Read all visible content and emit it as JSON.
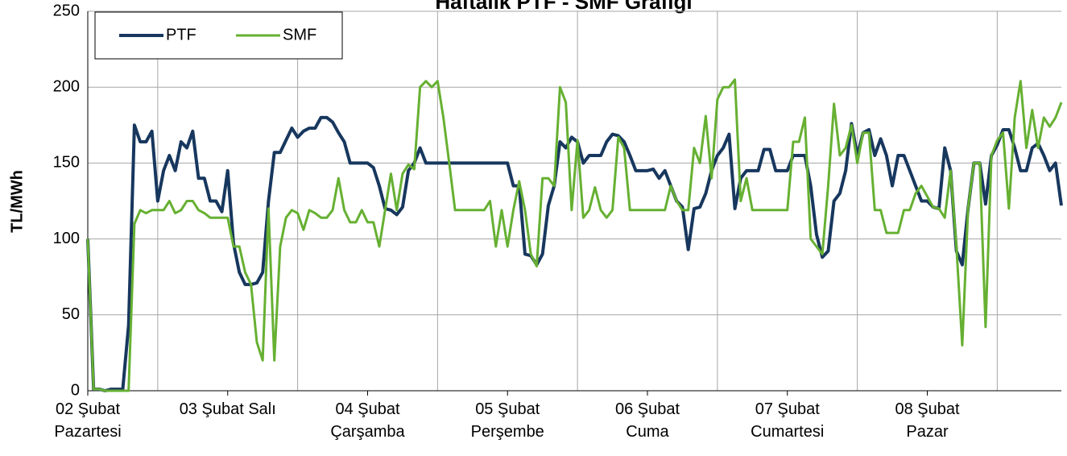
{
  "chart_data": {
    "type": "line",
    "title": "Haftalık PTF - SMF Grafiği",
    "y_label": "TL/MWh",
    "categories": [
      "02 Şubat\nPazartesi",
      null,
      null,
      null,
      null,
      null,
      null,
      null,
      null,
      null,
      null,
      null,
      null,
      null,
      null,
      null,
      null,
      null,
      null,
      null,
      null,
      null,
      null,
      null,
      "03 Şubat Salı",
      null,
      null,
      null,
      null,
      null,
      null,
      null,
      null,
      null,
      null,
      null,
      null,
      null,
      null,
      null,
      null,
      null,
      null,
      null,
      null,
      null,
      null,
      null,
      "04 Şubat\nÇarşamba",
      null,
      null,
      null,
      null,
      null,
      null,
      null,
      null,
      null,
      null,
      null,
      null,
      null,
      null,
      null,
      null,
      null,
      null,
      null,
      null,
      null,
      null,
      null,
      "05 Şubat\nPerşembe",
      null,
      null,
      null,
      null,
      null,
      null,
      null,
      null,
      null,
      null,
      null,
      null,
      null,
      null,
      null,
      null,
      null,
      null,
      null,
      null,
      null,
      null,
      null,
      "06 Şubat\nCuma",
      null,
      null,
      null,
      null,
      null,
      null,
      null,
      null,
      null,
      null,
      null,
      null,
      null,
      null,
      null,
      null,
      null,
      null,
      null,
      null,
      null,
      null,
      null,
      "07 Şubat\nCumartesi",
      null,
      null,
      null,
      null,
      null,
      null,
      null,
      null,
      null,
      null,
      null,
      null,
      null,
      null,
      null,
      null,
      null,
      null,
      null,
      null,
      null,
      null,
      null,
      "08 Şubat\nPazar",
      null,
      null,
      null,
      null,
      null,
      null,
      null,
      null,
      null,
      null,
      null,
      null,
      null,
      null,
      null,
      null,
      null,
      null,
      null,
      null,
      null,
      null,
      null
    ],
    "series": [
      {
        "name": "PTF",
        "color": "#17375e",
        "values": [
          100,
          1,
          1,
          0,
          1,
          1,
          1,
          43,
          175,
          164,
          164,
          171,
          125,
          145,
          155,
          145,
          164,
          160,
          171,
          140,
          140,
          125,
          125,
          118,
          145,
          97,
          78,
          70,
          70,
          71,
          78,
          125,
          157,
          157,
          165,
          173,
          167,
          171,
          173,
          173,
          180,
          180,
          177,
          170,
          164,
          150,
          150,
          150,
          150,
          147,
          135,
          120,
          119,
          116,
          121,
          145,
          150,
          160,
          150,
          150,
          150,
          150,
          150,
          150,
          150,
          150,
          150,
          150,
          150,
          150,
          150,
          150,
          150,
          135,
          135,
          90,
          89,
          83,
          90,
          122,
          135,
          164,
          160,
          167,
          164,
          150,
          155,
          155,
          155,
          164,
          169,
          168,
          164,
          155,
          145,
          145,
          145,
          146,
          140,
          145,
          135,
          125,
          121,
          93,
          120,
          121,
          130,
          145,
          155,
          160,
          169,
          120,
          140,
          145,
          145,
          145,
          159,
          159,
          145,
          145,
          145,
          155,
          155,
          155,
          135,
          103,
          88,
          92,
          125,
          130,
          145,
          176,
          155,
          170,
          172,
          155,
          166,
          155,
          135,
          155,
          155,
          145,
          135,
          125,
          125,
          121,
          120,
          160,
          145,
          92,
          83,
          120,
          150,
          150,
          123,
          155,
          162,
          172,
          172,
          160,
          145,
          145,
          160,
          163,
          155,
          145,
          150,
          122
        ]
      },
      {
        "name": "SMF",
        "color": "#66b032",
        "values": [
          100,
          1,
          1,
          0,
          0,
          0,
          0,
          0,
          110,
          119,
          117,
          119,
          119,
          119,
          125,
          117,
          119,
          125,
          125,
          119,
          117,
          114,
          114,
          114,
          114,
          95,
          95,
          78,
          70,
          32,
          20,
          120,
          20,
          95,
          114,
          119,
          117,
          106,
          119,
          117,
          114,
          114,
          119,
          140,
          119,
          111,
          111,
          119,
          111,
          111,
          95,
          119,
          143,
          119,
          143,
          149,
          146,
          200,
          204,
          200,
          204,
          180,
          150,
          119,
          119,
          119,
          119,
          119,
          119,
          125,
          95,
          119,
          95,
          119,
          138,
          119,
          90,
          82,
          140,
          140,
          135,
          200,
          190,
          119,
          165,
          114,
          119,
          134,
          119,
          114,
          119,
          167,
          160,
          119,
          119,
          119,
          119,
          119,
          119,
          119,
          135,
          125,
          119,
          119,
          160,
          150,
          181,
          140,
          192,
          200,
          200,
          205,
          125,
          140,
          119,
          119,
          119,
          119,
          119,
          119,
          119,
          164,
          164,
          180,
          100,
          95,
          90,
          135,
          189,
          155,
          160,
          175,
          150,
          170,
          170,
          119,
          119,
          104,
          104,
          104,
          119,
          119,
          130,
          135,
          128,
          121,
          120,
          114,
          145,
          95,
          30,
          120,
          150,
          150,
          42,
          155,
          165,
          170,
          120,
          180,
          204,
          160,
          185,
          160,
          180,
          174,
          180,
          190
        ]
      }
    ],
    "ylim": [
      0,
      250
    ],
    "yticks": [
      0,
      50,
      100,
      150,
      200,
      250
    ],
    "grid": true,
    "legend": "top-left"
  }
}
